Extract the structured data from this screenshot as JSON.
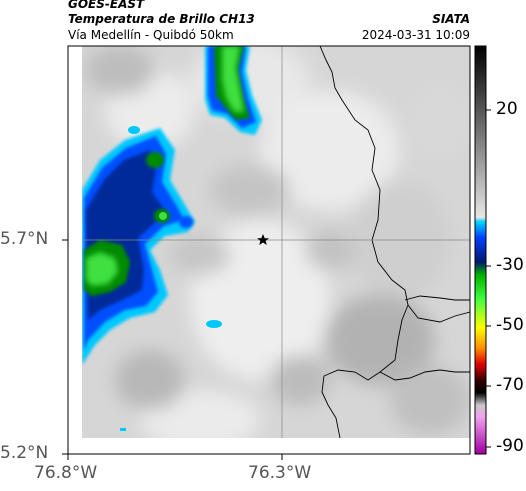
{
  "header": {
    "satellite": "GOES-EAST",
    "product": "Temperatura de Brillo CH13",
    "agency": "SIATA",
    "route": "Vía Medellín - Quibdó 50km",
    "datetime": "2024-03-31 10:09"
  },
  "map": {
    "lat_ticks": [
      "5.7°N",
      "5.2°N"
    ],
    "lon_ticks": [
      "76.8°W",
      "76.3°W"
    ],
    "marker": "star-marker",
    "grid": true
  },
  "colorbar": {
    "ticks": [
      "20",
      "-30",
      "-50",
      "-70",
      "-90"
    ],
    "colors": [
      "#000000",
      "#7a7a7a",
      "#e4e4e4",
      "#00c8ff",
      "#0040ff",
      "#001a80",
      "#00c000",
      "#ffff00",
      "#ff8000",
      "#e00000",
      "#000000",
      "#c0c0c0",
      "#e000e0"
    ]
  }
}
